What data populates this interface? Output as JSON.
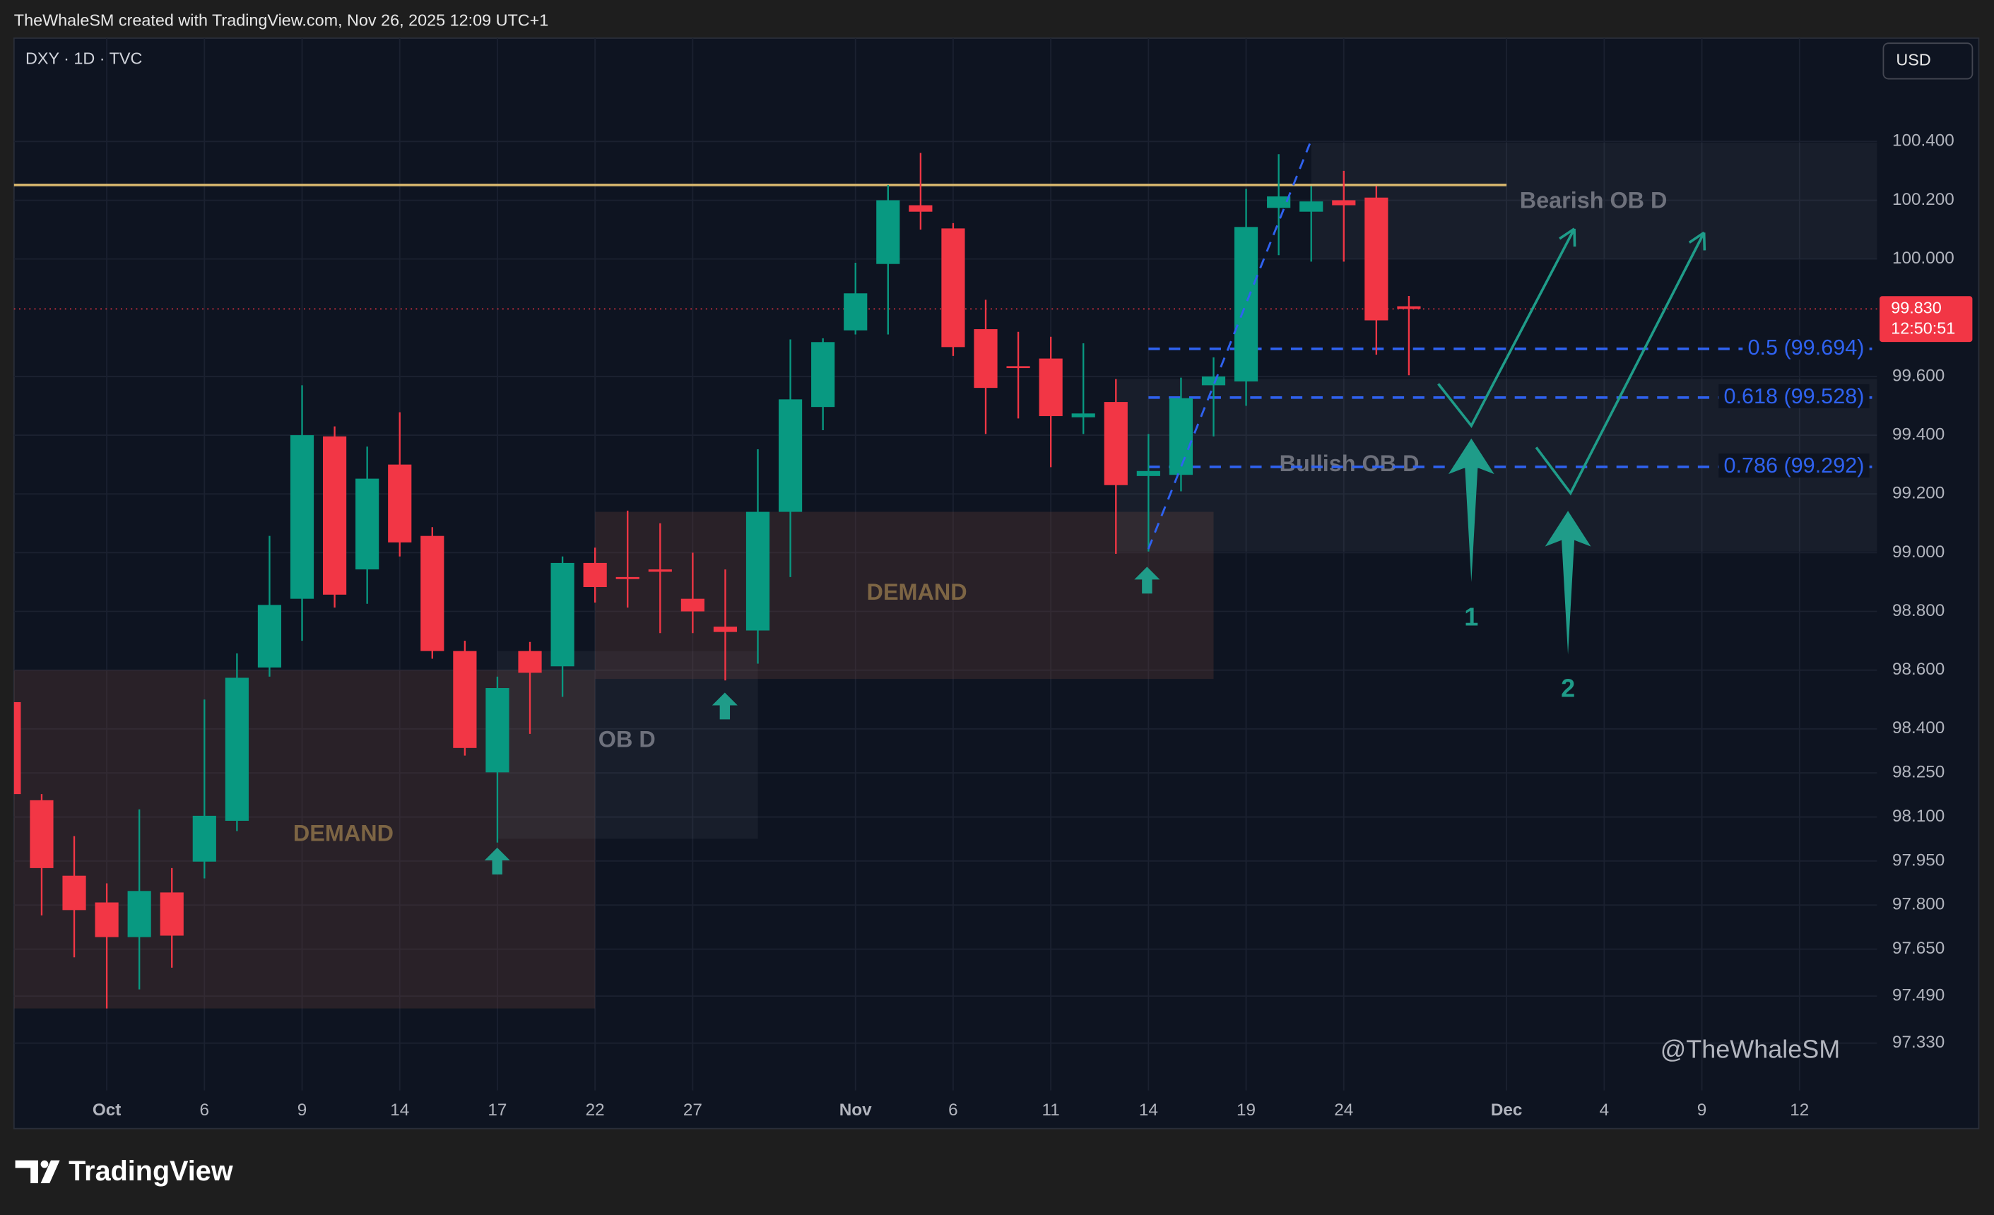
{
  "header": "TheWhaleSM created with TradingView.com, Nov 26, 2025 12:09 UTC+1",
  "footer_logo": "TradingView",
  "chart_data": {
    "type": "candlestick",
    "title": "DXY · 1D · TVC",
    "currency": "USD",
    "watermark": "@TheWhaleSM",
    "up_color": "#089981",
    "down_color": "#f23645",
    "grid": true,
    "candles": {
      "open": [
        98.491,
        98.157,
        97.9,
        97.809,
        97.691,
        97.843,
        97.948,
        98.087,
        98.609,
        98.843,
        99.396,
        98.943,
        99.3,
        99.057,
        98.665,
        98.252,
        98.665,
        98.613,
        98.965,
        98.917,
        98.943,
        98.843,
        98.748,
        98.735,
        99.139,
        99.496,
        99.757,
        99.983,
        100.183,
        100.104,
        99.761,
        99.635,
        99.661,
        99.461,
        99.513,
        99.261,
        99.265,
        99.57,
        99.583,
        100.174,
        100.161,
        100.2,
        100.209,
        99.839
      ],
      "high": [
        98.5,
        98.178,
        98.035,
        97.874,
        98.126,
        97.926,
        98.5,
        98.657,
        99.057,
        99.57,
        99.43,
        99.361,
        99.478,
        99.087,
        98.7,
        98.578,
        98.696,
        98.987,
        99.017,
        99.143,
        99.1,
        99.0,
        98.943,
        99.352,
        99.726,
        99.73,
        99.987,
        100.252,
        100.361,
        100.122,
        99.861,
        99.752,
        99.735,
        99.713,
        99.591,
        99.404,
        99.596,
        99.665,
        100.239,
        100.357,
        100.248,
        100.3,
        100.248,
        99.874
      ],
      "low": [
        98.17,
        97.765,
        97.622,
        97.448,
        97.513,
        97.587,
        97.891,
        98.052,
        98.578,
        98.7,
        98.813,
        98.826,
        98.987,
        98.639,
        98.309,
        98.013,
        98.383,
        98.509,
        98.83,
        98.813,
        98.726,
        98.726,
        98.565,
        98.622,
        98.917,
        99.417,
        99.743,
        99.743,
        100.1,
        99.67,
        99.404,
        99.457,
        99.291,
        99.404,
        98.996,
        99.004,
        99.209,
        99.396,
        99.5,
        100.013,
        99.991,
        99.991,
        99.674,
        99.604
      ],
      "close": [
        98.178,
        97.926,
        97.783,
        97.691,
        97.848,
        97.696,
        98.104,
        98.574,
        98.822,
        99.4,
        98.857,
        99.252,
        99.035,
        98.665,
        98.335,
        98.539,
        98.591,
        98.965,
        98.883,
        98.91,
        98.935,
        98.8,
        98.73,
        99.139,
        99.522,
        99.717,
        99.883,
        100.2,
        100.161,
        99.7,
        99.561,
        99.63,
        99.465,
        99.474,
        99.23,
        99.278,
        99.526,
        99.6,
        100.109,
        100.213,
        100.196,
        100.183,
        99.791,
        99.83
      ]
    },
    "xlim": [
      0.15,
      57.38
    ],
    "xticks": [
      {
        "value": 3,
        "label": "Oct"
      },
      6,
      9,
      {
        "value": 12,
        "label": "14"
      },
      {
        "value": 15,
        "label": "17"
      },
      {
        "value": 18,
        "label": "22"
      },
      {
        "value": 21,
        "label": "27"
      },
      {
        "value": 26,
        "label": "Nov"
      },
      {
        "value": 29,
        "label": "6"
      },
      {
        "value": 32,
        "label": "11"
      },
      {
        "value": 35,
        "label": "14"
      },
      {
        "value": 38,
        "label": "19"
      },
      {
        "value": 41,
        "label": "24"
      },
      {
        "value": 46,
        "label": "Dec"
      },
      {
        "value": 49,
        "label": "4"
      },
      {
        "value": 52,
        "label": "9"
      },
      {
        "value": 55,
        "label": "12"
      }
    ],
    "ylim": [
      97.039,
      100.752
    ],
    "yticks": [
      {
        "value": 100.4,
        "label": "100.400"
      },
      {
        "value": 100.2,
        "label": "100.200"
      },
      {
        "value": 100,
        "label": "100.000"
      },
      {
        "value": 99.6,
        "label": "99.600"
      },
      {
        "value": 99.4,
        "label": "99.400"
      },
      {
        "value": 99.2,
        "label": "99.200"
      },
      {
        "value": 99,
        "label": "99.000"
      },
      {
        "value": 98.8,
        "label": "98.800"
      },
      {
        "value": 98.6,
        "label": "98.600"
      },
      {
        "value": 98.4,
        "label": "98.400"
      },
      {
        "value": 98.25,
        "label": "98.250"
      },
      {
        "value": 98.1,
        "label": "98.100"
      },
      {
        "value": 97.95,
        "label": "97.950"
      },
      {
        "value": 97.8,
        "label": "97.800"
      },
      {
        "value": 97.65,
        "label": "97.650"
      },
      {
        "value": 97.49,
        "label": "97.490"
      },
      {
        "value": 97.33,
        "label": "97.330"
      }
    ],
    "last_price": {
      "value": 99.83,
      "label": "99.830",
      "countdown": "12:50:51"
    },
    "levels": [
      {
        "value": 100.252,
        "until": 46,
        "color": "#d4b46c"
      }
    ],
    "fib": {
      "from": 35,
      "color": "#2f62f0",
      "lines": [
        {
          "value": 99.694,
          "label": "0.5 (99.694)"
        },
        {
          "value": 99.528,
          "label": "0.618 (99.528)"
        },
        {
          "value": 99.292,
          "label": "0.786 (99.292)"
        }
      ]
    },
    "zones": [
      {
        "label": "DEMAND",
        "x": [
          0.15,
          18
        ],
        "y": [
          97.448,
          98.6
        ],
        "kind": "demand"
      },
      {
        "label": "OB D",
        "x": [
          15,
          23
        ],
        "y": [
          98.026,
          98.665
        ],
        "kind": "ob"
      },
      {
        "label": "DEMAND",
        "x": [
          18,
          37
        ],
        "y": [
          98.57,
          99.139
        ],
        "kind": "demand"
      },
      {
        "label": "Bullish OB D",
        "x": [
          34,
          57.38
        ],
        "y": [
          99.004,
          99.591
        ],
        "kind": "ob"
      },
      {
        "label": "Bearish OB D",
        "x": [
          40,
          57.38
        ],
        "y": [
          100,
          100.396
        ],
        "kind": "ob"
      }
    ],
    "projection_labels": [
      "1",
      "2"
    ]
  }
}
